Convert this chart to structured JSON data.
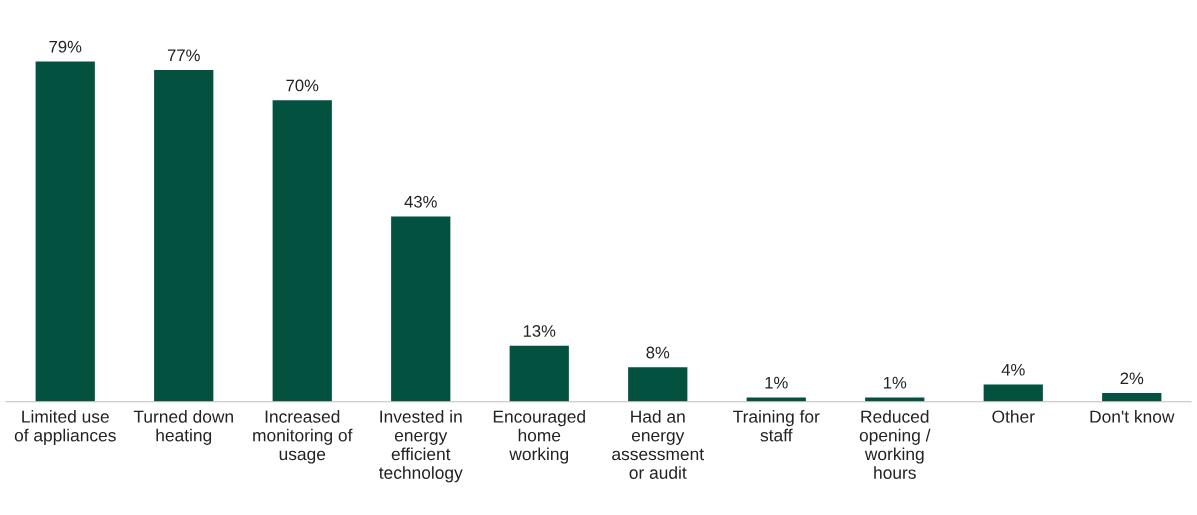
{
  "chart_data": {
    "type": "bar",
    "categories": [
      "Limited use\nof appliances",
      "Turned down\nheating",
      "Increased\nmonitoring of\nusage",
      "Invested in\nenergy\nefficient\ntechnology",
      "Encouraged\nhome\nworking",
      "Had an\nenergy\nassessment\nor audit",
      "Training for\nstaff",
      "Reduced\nopening /\nworking\nhours",
      "Other",
      "Don't know"
    ],
    "values": [
      79,
      77,
      70,
      43,
      13,
      8,
      1,
      1,
      4,
      2
    ],
    "value_labels": [
      "79%",
      "77%",
      "70%",
      "43%",
      "13%",
      "8%",
      "1%",
      "1%",
      "4%",
      "2%"
    ],
    "color": "#03513f",
    "grid": false,
    "legend": false
  }
}
